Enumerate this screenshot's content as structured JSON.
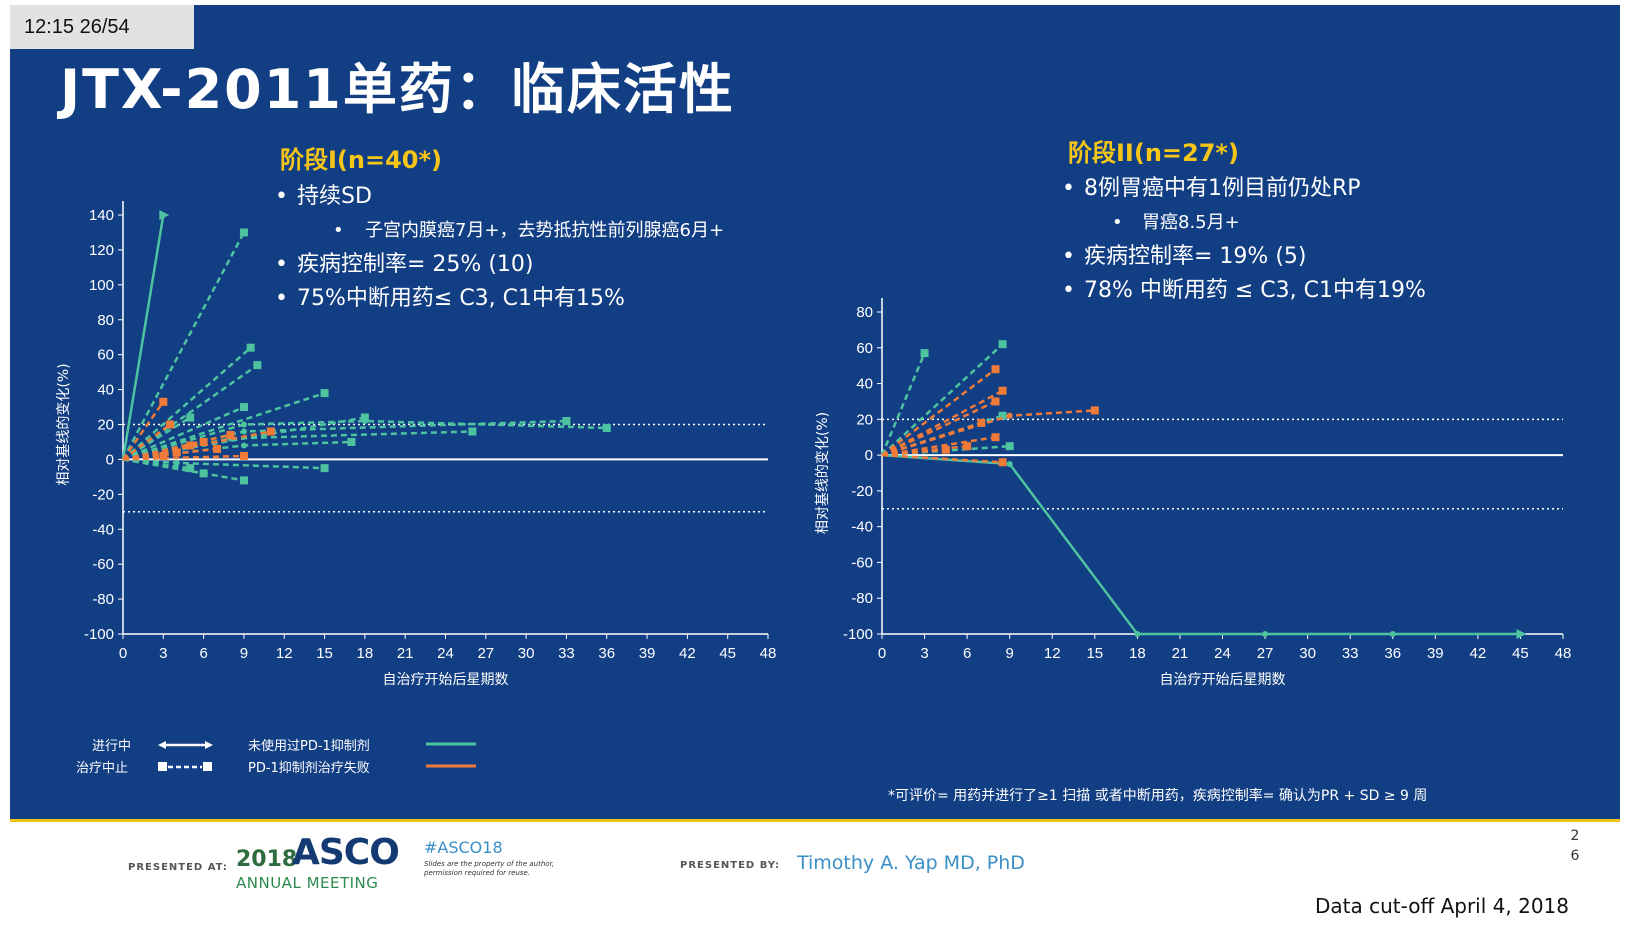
{
  "header": {
    "time_badge": "12:15   26/54",
    "title": "JTX-2011单药：临床活性"
  },
  "phase1": {
    "heading": "阶段I(n=40*)",
    "bullets": [
      "持续SD",
      "子宫内膜癌7月+，去势抵抗性前列腺癌6月+",
      "疾病控制率= 25% (10)",
      "75%中断用药≤ C3, C1中有15%"
    ]
  },
  "phase2": {
    "heading": "阶段II(n=27*)",
    "bullets": [
      "8例胃癌中有1例目前仍处RP",
      "胃癌8.5月+",
      "疾病控制率= 19% (5)",
      "78% 中断用药 ≤ C3, C1中有19%"
    ]
  },
  "legend": {
    "ongoing": "进行中",
    "discontinued": "治疗中止",
    "pd1_naive": "未使用过PD-1抑制剂",
    "pd1_failed": "PD-1抑制剂治疗失败",
    "colors": {
      "pd1_naive": "#4ec3a0",
      "pd1_failed": "#f07a38",
      "reference": "#ffffff"
    }
  },
  "footnote": "*可评价= 用药并进行了≥1 扫描  或者中断用药，疾病控制率= 确认为PR + SD ≥ 9 周",
  "footer": {
    "presented_at": "PRESENTED AT:",
    "asco_year": "2018",
    "asco_word": "ASCO",
    "asco_sub": "ANNUAL MEETING",
    "hashtag": "#ASCO18",
    "disclaimer": "Slides are the property of the author, permission required for reuse.",
    "presented_by": "PRESENTED BY:",
    "presenter": "Timothy A. Yap MD, PhD",
    "page_number": "26",
    "cutoff": "Data cut-off April 4, 2018"
  },
  "chart_data": [
    {
      "type": "line",
      "ylabel": "相对基线的变化(%)",
      "xlabel": "自治疗开始后星期数",
      "xlim": [
        0,
        48
      ],
      "ylim": [
        -100,
        140
      ],
      "xticks": [
        0,
        3,
        6,
        9,
        12,
        15,
        18,
        21,
        24,
        27,
        30,
        33,
        36,
        39,
        42,
        45,
        48
      ],
      "yticks": [
        140,
        120,
        100,
        80,
        60,
        40,
        20,
        0,
        -20,
        -40,
        -60,
        -80,
        -100
      ],
      "reference_lines": [
        20,
        0,
        -30
      ],
      "series": [
        {
          "group": "pd1_naive",
          "x": [
            0,
            3
          ],
          "y": [
            0,
            140
          ],
          "ended": false
        },
        {
          "group": "pd1_naive",
          "x": [
            0,
            9
          ],
          "y": [
            0,
            130
          ],
          "ended": true
        },
        {
          "group": "pd1_naive",
          "x": [
            0,
            9.5
          ],
          "y": [
            0,
            64
          ],
          "ended": true
        },
        {
          "group": "pd1_naive",
          "x": [
            0,
            10
          ],
          "y": [
            0,
            54
          ],
          "ended": true
        },
        {
          "group": "pd1_naive",
          "x": [
            0,
            15
          ],
          "y": [
            0,
            38
          ],
          "ended": true
        },
        {
          "group": "pd1_naive",
          "x": [
            0,
            9
          ],
          "y": [
            0,
            30
          ],
          "ended": true
        },
        {
          "group": "pd1_naive",
          "x": [
            0,
            5
          ],
          "y": [
            0,
            24
          ],
          "ended": true
        },
        {
          "group": "pd1_naive",
          "x": [
            0,
            18
          ],
          "y": [
            0,
            24
          ],
          "ended": true
        },
        {
          "group": "pd1_naive",
          "x": [
            0,
            9,
            18,
            36
          ],
          "y": [
            0,
            20,
            22,
            18
          ],
          "ended": true
        },
        {
          "group": "pd1_naive",
          "x": [
            0,
            9,
            33
          ],
          "y": [
            0,
            16,
            22
          ],
          "ended": true
        },
        {
          "group": "pd1_naive",
          "x": [
            0,
            8,
            26
          ],
          "y": [
            0,
            12,
            16
          ],
          "ended": true
        },
        {
          "group": "pd1_naive",
          "x": [
            0,
            9,
            17
          ],
          "y": [
            0,
            8,
            10
          ],
          "ended": true
        },
        {
          "group": "pd1_naive",
          "x": [
            0,
            4,
            15
          ],
          "y": [
            0,
            -2,
            -5
          ],
          "ended": true
        },
        {
          "group": "pd1_naive",
          "x": [
            0,
            5
          ],
          "y": [
            0,
            -5
          ],
          "ended": true
        },
        {
          "group": "pd1_naive",
          "x": [
            0,
            9
          ],
          "y": [
            0,
            -12
          ],
          "ended": true
        },
        {
          "group": "pd1_naive",
          "x": [
            0,
            6
          ],
          "y": [
            0,
            -8
          ],
          "ended": true
        },
        {
          "group": "pd1_failed",
          "x": [
            0,
            3
          ],
          "y": [
            0,
            33
          ],
          "ended": true
        },
        {
          "group": "pd1_failed",
          "x": [
            0,
            3.5
          ],
          "y": [
            0,
            20
          ],
          "ended": true
        },
        {
          "group": "pd1_failed",
          "x": [
            0,
            11
          ],
          "y": [
            0,
            16
          ],
          "ended": true
        },
        {
          "group": "pd1_failed",
          "x": [
            0,
            8
          ],
          "y": [
            0,
            14
          ],
          "ended": true
        },
        {
          "group": "pd1_failed",
          "x": [
            0,
            6
          ],
          "y": [
            0,
            10
          ],
          "ended": true
        },
        {
          "group": "pd1_failed",
          "x": [
            0,
            5
          ],
          "y": [
            0,
            8
          ],
          "ended": true
        },
        {
          "group": "pd1_failed",
          "x": [
            0,
            7
          ],
          "y": [
            0,
            6
          ],
          "ended": true
        },
        {
          "group": "pd1_failed",
          "x": [
            0,
            4
          ],
          "y": [
            0,
            4
          ],
          "ended": true
        },
        {
          "group": "pd1_failed",
          "x": [
            0,
            9
          ],
          "y": [
            0,
            2
          ],
          "ended": true
        },
        {
          "group": "pd1_failed",
          "x": [
            0,
            3
          ],
          "y": [
            0,
            2
          ],
          "ended": true
        }
      ]
    },
    {
      "type": "line",
      "ylabel": "相对基线的变化(%)",
      "xlabel": "自治疗开始后星期数",
      "xlim": [
        0,
        48
      ],
      "ylim": [
        -100,
        80
      ],
      "xticks": [
        0,
        3,
        6,
        9,
        12,
        15,
        18,
        21,
        24,
        27,
        30,
        33,
        36,
        39,
        42,
        45,
        48
      ],
      "yticks": [
        80,
        60,
        40,
        20,
        0,
        -20,
        -40,
        -60,
        -80,
        -100
      ],
      "reference_lines": [
        20,
        0,
        -30
      ],
      "series": [
        {
          "group": "pd1_naive",
          "x": [
            0,
            3
          ],
          "y": [
            0,
            57
          ],
          "ended": true
        },
        {
          "group": "pd1_naive",
          "x": [
            0,
            8.5
          ],
          "y": [
            0,
            62
          ],
          "ended": true
        },
        {
          "group": "pd1_naive",
          "x": [
            0,
            8.5
          ],
          "y": [
            0,
            22
          ],
          "ended": true
        },
        {
          "group": "pd1_naive",
          "x": [
            0,
            9
          ],
          "y": [
            0,
            5
          ],
          "ended": true
        },
        {
          "group": "pd1_naive",
          "x": [
            0,
            9,
            18,
            27,
            36,
            45
          ],
          "y": [
            0,
            -5,
            -100,
            -100,
            -100,
            -100
          ],
          "ended": false
        },
        {
          "group": "pd1_failed",
          "x": [
            0,
            8
          ],
          "y": [
            0,
            48
          ],
          "ended": true
        },
        {
          "group": "pd1_failed",
          "x": [
            0,
            8.5
          ],
          "y": [
            0,
            36
          ],
          "ended": true
        },
        {
          "group": "pd1_failed",
          "x": [
            0,
            8
          ],
          "y": [
            0,
            30
          ],
          "ended": true
        },
        {
          "group": "pd1_failed",
          "x": [
            0,
            9,
            15
          ],
          "y": [
            0,
            22,
            25
          ],
          "ended": true
        },
        {
          "group": "pd1_failed",
          "x": [
            0,
            7
          ],
          "y": [
            0,
            18
          ],
          "ended": true
        },
        {
          "group": "pd1_failed",
          "x": [
            0,
            8
          ],
          "y": [
            0,
            10
          ],
          "ended": true
        },
        {
          "group": "pd1_failed",
          "x": [
            0,
            6
          ],
          "y": [
            0,
            5
          ],
          "ended": true
        },
        {
          "group": "pd1_failed",
          "x": [
            0,
            4.5
          ],
          "y": [
            0,
            3
          ],
          "ended": true
        },
        {
          "group": "pd1_failed",
          "x": [
            0,
            8.5
          ],
          "y": [
            0,
            -4
          ],
          "ended": true
        }
      ]
    }
  ]
}
